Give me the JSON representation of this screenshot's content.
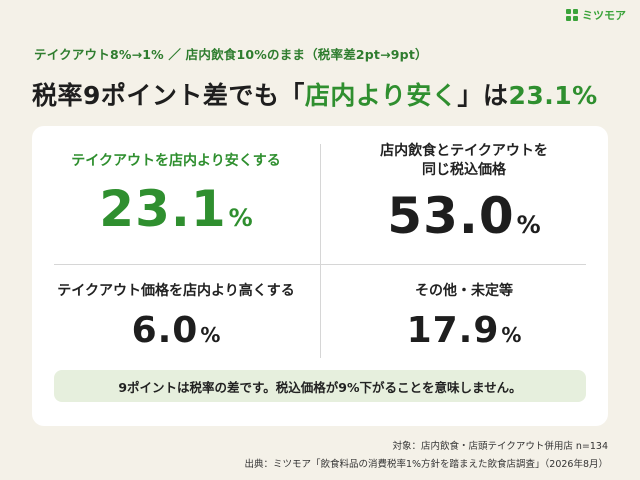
{
  "brand": {
    "logo_text": "ミツモア",
    "logo_icon": "grid-icon",
    "accent_color": "#3aa33a"
  },
  "header": {
    "subtitle": "テイクアウト8%→1% ／ 店内飲食10%のまま（税率差2pt→9pt）",
    "headline_pre": "税率9ポイント差でも「",
    "headline_highlight": "店内より安く",
    "headline_mid": "」は",
    "headline_value": "23.1",
    "headline_pct": "%"
  },
  "results": [
    {
      "label": "テイクアウトを店内より安くする",
      "value": "23.1",
      "unit": "%"
    },
    {
      "label_line1": "店内飲食とテイクアウトを",
      "label_line2": "同じ税込価格",
      "value": "53.0",
      "unit": "%"
    },
    {
      "label": "テイクアウト価格を店内より高くする",
      "value": "6.0",
      "unit": "%"
    },
    {
      "label": "その他・未定等",
      "value": "17.9",
      "unit": "%"
    }
  ],
  "note": "9ポイントは税率の差です。税込価格が9%下がることを意味しません。",
  "footer": {
    "target": "対象：店内飲食・店頭テイクアウト併用店 n=134",
    "source": "出典：ミツモア「飲食料品の消費税率1%方針を踏まえた飲食店調査」（2026年8月）"
  }
}
